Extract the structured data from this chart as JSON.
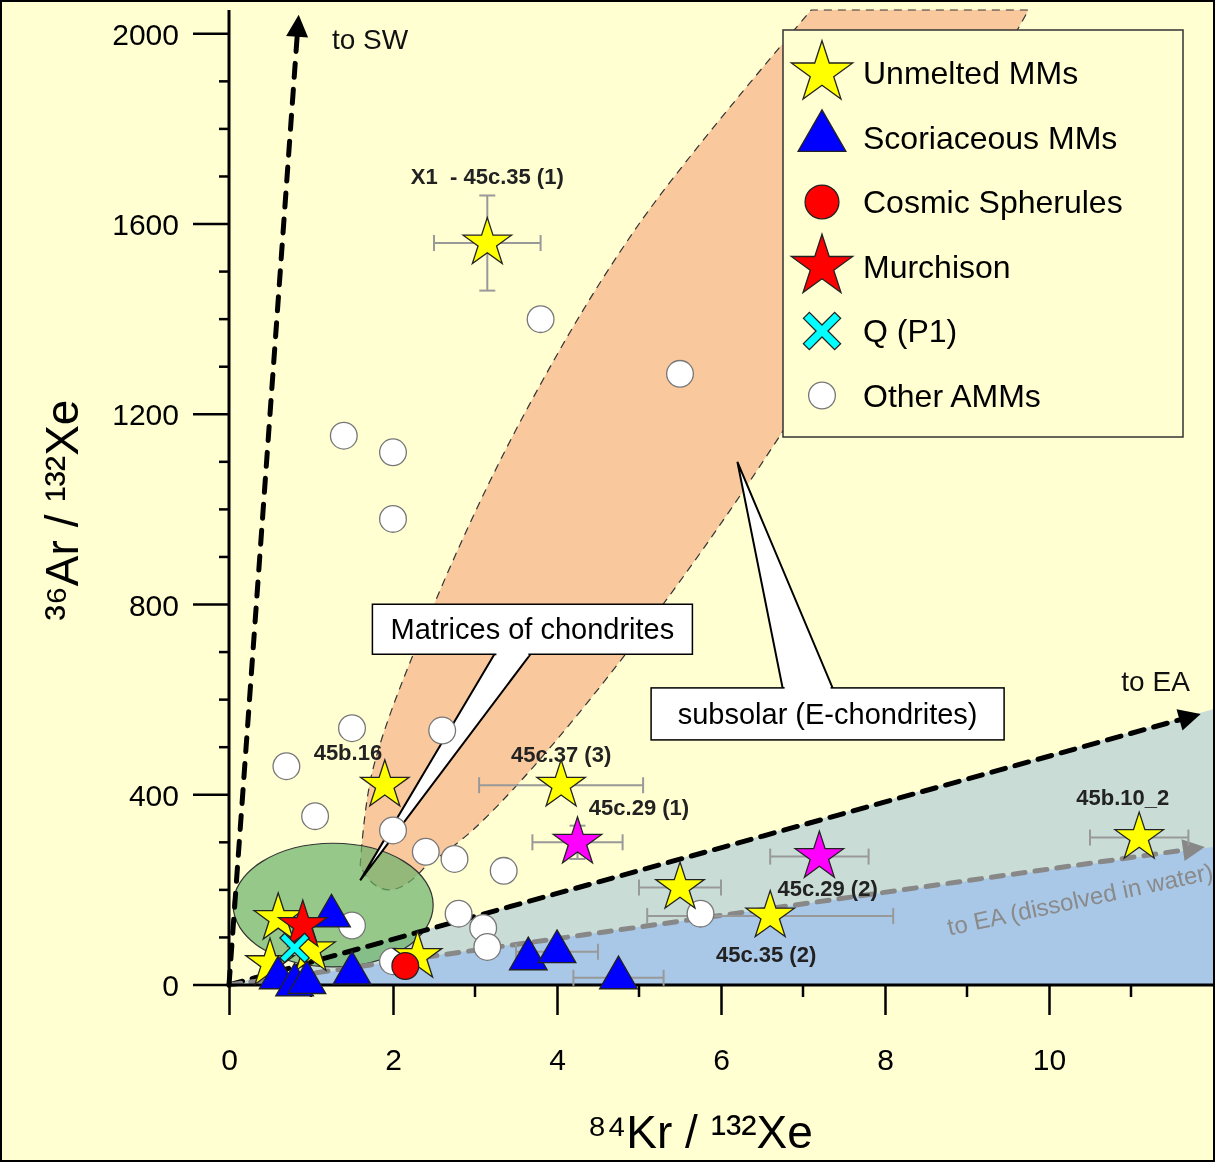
{
  "chart_data": {
    "type": "scatter",
    "xlabel": "⁸⁴Kr / ¹³²Xe",
    "ylabel": "³⁶Ar / ¹³²Xe",
    "xlim": [
      0,
      12
    ],
    "ylim": [
      0,
      2050
    ],
    "xticks": [
      0,
      {
        "value": 1,
        "label": null
      },
      2,
      {
        "value": 3,
        "label": null
      },
      4,
      {
        "value": 5,
        "label": null
      },
      6,
      {
        "value": 7,
        "label": null
      },
      8,
      {
        "value": 9,
        "label": null
      },
      10,
      {
        "value": 11,
        "label": null
      }
    ],
    "yticks": [
      0,
      {
        "value": 100,
        "label": null
      },
      {
        "value": 200,
        "label": null
      },
      {
        "value": 300,
        "label": null
      },
      400,
      {
        "value": 500,
        "label": null
      },
      {
        "value": 600,
        "label": null
      },
      {
        "value": 700,
        "label": null
      },
      800,
      {
        "value": 900,
        "label": null
      },
      {
        "value": 1000,
        "label": null
      },
      {
        "value": 1100,
        "label": null
      },
      1200,
      {
        "value": 1300,
        "label": null
      },
      {
        "value": 1400,
        "label": null
      },
      {
        "value": 1500,
        "label": null
      },
      1600,
      {
        "value": 1700,
        "label": null
      },
      {
        "value": 1800,
        "label": null
      },
      {
        "value": 1900,
        "label": null
      },
      2000
    ],
    "grid": false,
    "legend": "top right",
    "series": [
      {
        "name": "Other AMMs",
        "color": "#ffffff",
        "marker": "circle",
        "x": [
          3.8,
          5.5,
          1.4,
          2.0,
          2.0,
          1.5,
          2.6,
          0.7,
          1.05,
          2.0,
          2.4,
          2.75,
          3.35,
          2.8,
          3.1,
          3.15,
          5.75,
          1.5,
          2.0
        ],
        "values": [
          1400,
          1285,
          1155,
          1120,
          980,
          540,
          535,
          460,
          355,
          325,
          280,
          265,
          240,
          150,
          120,
          80,
          150,
          125,
          50
        ]
      },
      {
        "color": "#ff00ff",
        "marker": "star",
        "x": [
          4.25,
          7.2
        ],
        "values": [
          300,
          270
        ],
        "xerrors": [
          0.55,
          0.6
        ],
        "errors": [
          35,
          null
        ]
      },
      {
        "name": "Unmelted MMs",
        "color": "#ffff00",
        "marker": "star",
        "x": [
          3.15,
          1.9,
          4.05,
          5.5,
          6.6,
          11.1,
          2.3,
          0.6,
          0.5,
          1.0
        ],
        "values": [
          1560,
          420,
          420,
          205,
          145,
          310,
          60,
          140,
          45,
          74
        ],
        "xerrors": [
          0.65,
          null,
          1.0,
          0.5,
          1.5,
          0.6,
          null,
          null,
          null,
          null
        ],
        "errors": [
          100,
          null,
          null,
          null,
          null,
          null,
          null,
          null,
          null,
          null
        ]
      },
      {
        "name": "Scoriaceous MMs",
        "color": "#0000ff",
        "marker": "triangle",
        "x": [
          1.25,
          1.5,
          0.6,
          0.8,
          0.95,
          3.65,
          4.0,
          4.75
        ],
        "values": [
          145,
          25,
          15,
          0,
          5,
          55,
          70,
          15
        ],
        "xerrors": [
          null,
          null,
          null,
          null,
          null,
          null,
          0.5,
          0.55
        ]
      },
      {
        "name": "Cosmic Spherules",
        "color": "#ff0000",
        "marker": "circle",
        "x": [
          2.15
        ],
        "values": [
          40
        ]
      },
      {
        "name": "Murchison",
        "color": "#ff0000",
        "marker": "star",
        "x": [
          0.9
        ],
        "values": [
          125
        ]
      },
      {
        "name": "Q (P1)",
        "color": "#00ffff",
        "marker": "cross",
        "x": [
          0.8
        ],
        "values": [
          78
        ]
      }
    ],
    "annotations": [
      "X1  - 45c.35 (1)",
      "45b.16",
      "45c.37 (3)",
      "45c.29 (1)",
      "45c.29 (2)",
      "45c.35 (2)",
      "45b.10_2",
      "to SW",
      "to EA",
      "to EA (dissolved in water)",
      "Matrices of chondrites",
      "subsolar (E-chondrites)"
    ]
  }
}
